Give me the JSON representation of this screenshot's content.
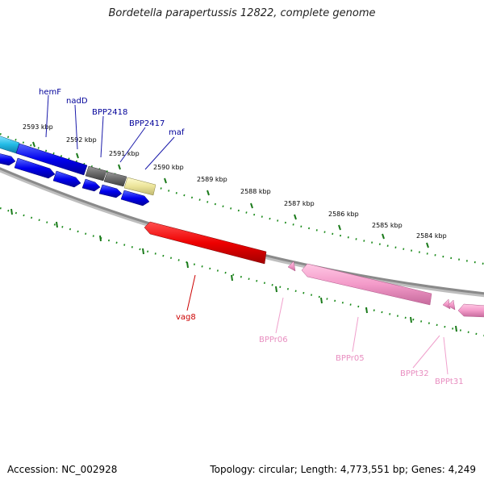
{
  "title": "Bordetella parapertussis 12822, complete genome",
  "footer": {
    "accession": "Accession: NC_002928",
    "summary": "Topology: circular; Length: 4,773,551 bp; Genes: 4,249"
  },
  "ruler_labels": [
    "2593 kbp",
    "2592 kbp",
    "2591 kbp",
    "2590 kbp",
    "2589 kbp",
    "2588 kbp",
    "2587 kbp",
    "2586 kbp",
    "2585 kbp",
    "2584 kbp"
  ],
  "gene_labels": {
    "hemF": "hemF",
    "nadD": "nadD",
    "BPP2418": "BPP2418",
    "BPP2417": "BPP2417",
    "maf": "maf",
    "vag8": "vag8",
    "BPPr06": "BPPr06",
    "BPPr05": "BPPr05",
    "BPPt32": "BPPt32",
    "BPPt31": "BPPt31"
  },
  "colors": {
    "cds_forward": "#0000e0",
    "cds_highlight": "#1e28d8",
    "cyan_gene": "#22bbe6",
    "gray_gene": "#6a6a6a",
    "khaki_gene": "#ece49a",
    "vag8": "#e60000",
    "rrna": "#f29ac8",
    "backbone": "#7a7a7a",
    "ticks": "#1a7a1a",
    "label_blue": "#000099",
    "label_red": "#cc0000",
    "label_pink": "#e88ec0"
  }
}
